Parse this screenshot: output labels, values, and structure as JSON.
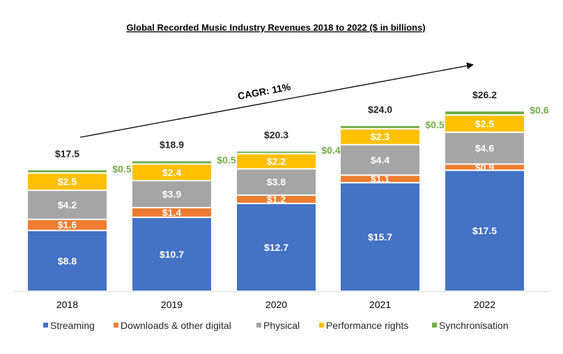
{
  "chart_data": {
    "type": "bar",
    "stacked": true,
    "title": "Global Recorded Music Industry Revenues 2018 to 2022 ($ in billions)",
    "categories": [
      "2018",
      "2019",
      "2020",
      "2021",
      "2022"
    ],
    "series": [
      {
        "name": "Streaming",
        "color": "#4472C4",
        "values": [
          8.8,
          10.7,
          12.7,
          15.7,
          17.5
        ],
        "labels": [
          "$8.8",
          "$10.7",
          "$12.7",
          "$15.7",
          "$17.5"
        ]
      },
      {
        "name": "Downloads & other digital",
        "color": "#ED7D31",
        "values": [
          1.6,
          1.4,
          1.2,
          1.1,
          0.9
        ],
        "labels": [
          "$1.6",
          "$1.4",
          "$1.2",
          "$1.1",
          "$0.9"
        ]
      },
      {
        "name": "Physical",
        "color": "#A5A5A5",
        "values": [
          4.2,
          3.9,
          3.8,
          4.4,
          4.6
        ],
        "labels": [
          "$4.2",
          "$3.9",
          "$3.8",
          "$4.4",
          "$4.6"
        ]
      },
      {
        "name": "Performance rights",
        "color": "#FFC000",
        "values": [
          2.5,
          2.4,
          2.2,
          2.3,
          2.5
        ],
        "labels": [
          "$2.5",
          "$2.4",
          "$2.2",
          "$2.3",
          "$2.5"
        ]
      },
      {
        "name": "Synchronisation",
        "color": "#70AD47",
        "values": [
          0.5,
          0.5,
          0.4,
          0.5,
          0.6
        ],
        "labels": [
          "$0.5",
          "$0.5",
          "$0.4",
          "$0.5",
          "$0.6"
        ]
      }
    ],
    "totals": [
      "$17.5",
      "$18.9",
      "$20.3",
      "$24.0",
      "$26.2"
    ],
    "annotation": "CAGR: 11%",
    "ylim": [
      0,
      26.2
    ],
    "grid": false,
    "legend": "bottom"
  }
}
